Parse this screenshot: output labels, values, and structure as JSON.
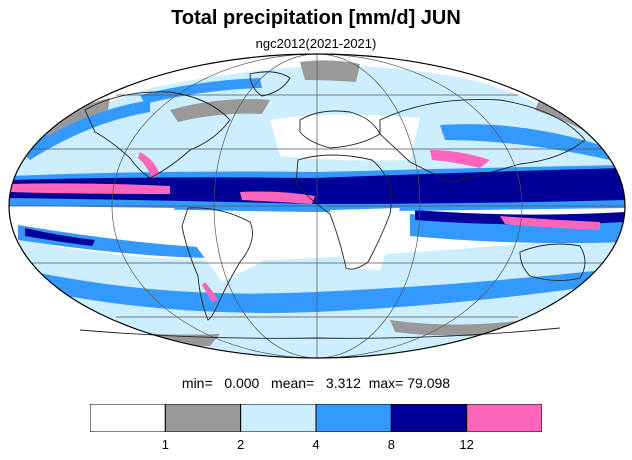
{
  "title": "Total precipitation [mm/d] JUN",
  "subtitle": "ngc2012(2021-2021)",
  "stats": {
    "min_label": "min=",
    "min_value": "0.000",
    "mean_label": "mean=",
    "mean_value": "3.312",
    "max_label": "max=",
    "max_value": "79.098"
  },
  "legend": {
    "bins": [
      {
        "from": null,
        "to": 1,
        "color": "#ffffff"
      },
      {
        "from": 1,
        "to": 2,
        "color": "#999999"
      },
      {
        "from": 2,
        "to": 4,
        "color": "#cceeff"
      },
      {
        "from": 4,
        "to": 8,
        "color": "#3399ff"
      },
      {
        "from": 8,
        "to": 12,
        "color": "#000099"
      },
      {
        "from": 12,
        "to": null,
        "color": "#ff66bb"
      }
    ],
    "tick_labels": [
      "1",
      "2",
      "4",
      "8",
      "12"
    ]
  },
  "map": {
    "projection": "Mollweide",
    "grid_lines": true,
    "coastlines": true
  },
  "colors": {
    "light": "#cceeff",
    "medium": "#3399ff",
    "heavy": "#000099",
    "extreme": "#ff66bb",
    "dry": "#999999"
  }
}
